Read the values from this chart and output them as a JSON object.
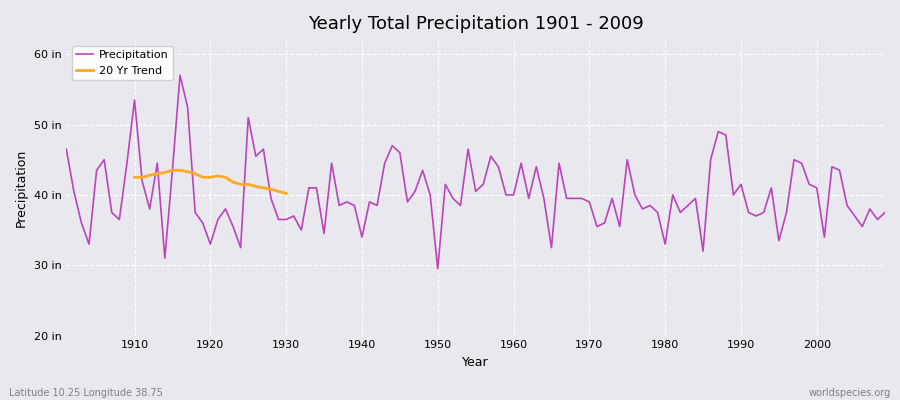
{
  "title": "Yearly Total Precipitation 1901 - 2009",
  "xlabel": "Year",
  "ylabel": "Precipitation",
  "subtitle_left": "Latitude 10.25 Longitude 38.75",
  "subtitle_right": "worldspecies.org",
  "ylim": [
    20,
    62
  ],
  "yticks": [
    20,
    30,
    40,
    50,
    60
  ],
  "ytick_labels": [
    "20 in",
    "30 in",
    "40 in",
    "50 in",
    "60 in"
  ],
  "precipitation_color": "#bb44bb",
  "trend_color": "#ffaa22",
  "background_color": "#e8e8ee",
  "years": [
    1901,
    1902,
    1903,
    1904,
    1905,
    1906,
    1907,
    1908,
    1909,
    1910,
    1911,
    1912,
    1913,
    1914,
    1915,
    1916,
    1917,
    1918,
    1919,
    1920,
    1921,
    1922,
    1923,
    1924,
    1925,
    1926,
    1927,
    1928,
    1929,
    1930,
    1931,
    1932,
    1933,
    1934,
    1935,
    1936,
    1937,
    1938,
    1939,
    1940,
    1941,
    1942,
    1943,
    1944,
    1945,
    1946,
    1947,
    1948,
    1949,
    1950,
    1951,
    1952,
    1953,
    1954,
    1955,
    1956,
    1957,
    1958,
    1959,
    1960,
    1961,
    1962,
    1963,
    1964,
    1965,
    1966,
    1967,
    1968,
    1969,
    1970,
    1971,
    1972,
    1973,
    1974,
    1975,
    1976,
    1977,
    1978,
    1979,
    1980,
    1981,
    1982,
    1983,
    1984,
    1985,
    1986,
    1987,
    1988,
    1989,
    1990,
    1991,
    1992,
    1993,
    1994,
    1995,
    1996,
    1997,
    1998,
    1999,
    2000,
    2001,
    2002,
    2003,
    2004,
    2005,
    2006,
    2007,
    2008,
    2009
  ],
  "precipitation": [
    46.5,
    40.5,
    36.0,
    33.0,
    43.5,
    45.0,
    37.5,
    36.5,
    44.5,
    53.5,
    42.0,
    38.0,
    44.5,
    31.0,
    43.5,
    57.0,
    52.5,
    37.5,
    36.0,
    33.0,
    36.5,
    38.0,
    35.5,
    32.5,
    51.0,
    45.5,
    46.5,
    39.5,
    36.5,
    36.5,
    37.0,
    35.0,
    41.0,
    41.0,
    34.5,
    44.5,
    38.5,
    39.0,
    38.5,
    34.0,
    39.0,
    38.5,
    44.5,
    47.0,
    46.0,
    39.0,
    40.5,
    43.5,
    40.0,
    29.5,
    41.5,
    39.5,
    38.5,
    46.5,
    40.5,
    41.5,
    45.5,
    44.0,
    40.0,
    40.0,
    44.5,
    39.5,
    44.0,
    39.5,
    32.5,
    44.5,
    39.5,
    39.5,
    39.5,
    39.0,
    35.5,
    36.0,
    39.5,
    35.5,
    45.0,
    40.0,
    38.0,
    38.5,
    37.5,
    33.0,
    40.0,
    37.5,
    38.5,
    39.5,
    32.0,
    45.0,
    49.0,
    48.5,
    40.0,
    41.5,
    37.5,
    37.0,
    37.5,
    41.0,
    33.5,
    37.5,
    45.0,
    44.5,
    41.5,
    41.0,
    34.0,
    44.0,
    43.5,
    38.5,
    37.0,
    35.5,
    38.0,
    36.5,
    37.5
  ],
  "trend_years": [
    1910,
    1911,
    1912,
    1913,
    1914,
    1915,
    1916,
    1917,
    1918,
    1919,
    1920,
    1921,
    1922,
    1923,
    1924,
    1925,
    1926,
    1927,
    1928,
    1929,
    1930
  ],
  "trend_values": [
    42.5,
    42.5,
    42.8,
    43.0,
    43.2,
    43.5,
    43.5,
    43.3,
    43.0,
    42.5,
    42.5,
    42.7,
    42.5,
    41.8,
    41.5,
    41.5,
    41.2,
    41.0,
    40.8,
    40.5,
    40.2
  ]
}
